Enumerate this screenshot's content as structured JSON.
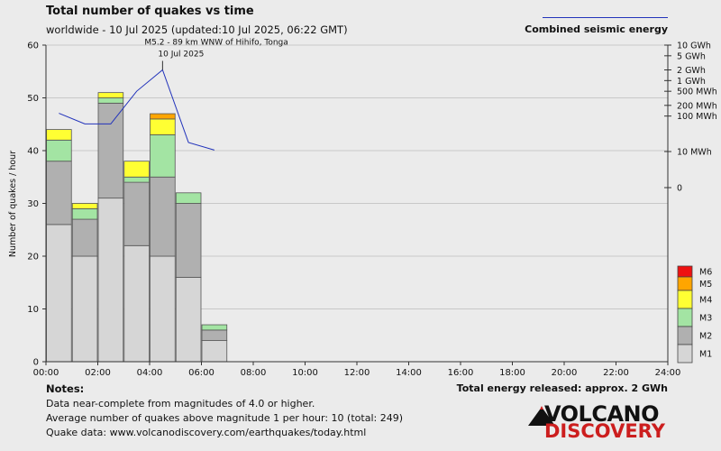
{
  "header": {
    "title": "Total number of quakes vs time",
    "subtitle": "worldwide - 10 Jul 2025 (updated:10 Jul 2025, 06:22 GMT)",
    "energy_legend_label": "Combined seismic energy"
  },
  "footer": {
    "notes_heading": "Notes:",
    "notes": [
      "Data near-complete from magnitudes of 4.0 or higher.",
      "Average number of quakes above magnitude 1 per hour: 10 (total: 249)",
      "Quake data: www.volcanodiscovery.com/earthquakes/today.html"
    ],
    "total_energy": "Total energy released: approx. 2 GWh"
  },
  "logo": {
    "top": "VOLCANO",
    "bottom": "DISCOVERY"
  },
  "colors": {
    "M1": "#d6d6d6",
    "M2": "#b0b0b0",
    "M3": "#a3e4a3",
    "M4": "#ffff33",
    "M5": "#ffa500",
    "M6": "#ee1111",
    "energy_line": "#2233bb",
    "grid": "#c8c8c8",
    "plot_bg": "#ebebeb"
  },
  "chart_data": {
    "type": "bar",
    "stacked": true,
    "ylabel": "Number of quakes / hour",
    "ylim": [
      0,
      60
    ],
    "y_ticks": [
      0,
      10,
      20,
      30,
      40,
      50,
      60
    ],
    "x_tick_labels": [
      "00:00",
      "02:00",
      "04:00",
      "06:00",
      "08:00",
      "10:00",
      "12:00",
      "14:00",
      "16:00",
      "18:00",
      "20:00",
      "22:00",
      "24:00"
    ],
    "hours": [
      0,
      1,
      2,
      3,
      4,
      5,
      6
    ],
    "series": [
      {
        "name": "M1",
        "values": [
          26,
          20,
          31,
          22,
          20,
          16,
          4
        ]
      },
      {
        "name": "M2",
        "values": [
          12,
          7,
          18,
          12,
          15,
          14,
          2
        ]
      },
      {
        "name": "M3",
        "values": [
          4,
          2,
          1,
          1,
          8,
          2,
          1
        ]
      },
      {
        "name": "M4",
        "values": [
          2,
          1,
          1,
          3,
          3,
          0,
          0
        ]
      },
      {
        "name": "M5",
        "values": [
          0,
          0,
          0,
          0,
          1,
          0,
          0
        ]
      },
      {
        "name": "M6",
        "values": [
          0,
          0,
          0,
          0,
          0,
          0,
          0
        ]
      }
    ],
    "energy_axis_labels": [
      "10 GWh",
      "5 GWh",
      "2 GWh",
      "1 GWh",
      "500 MWh",
      "200 MWh",
      "100 MWh",
      "10 MWh",
      "0"
    ],
    "energy_axis_values": [
      10000,
      5000,
      2000,
      1000,
      500,
      200,
      100,
      10,
      0
    ],
    "energy_series": {
      "name": "Combined seismic energy",
      "x": [
        0.5,
        1.5,
        2.5,
        3.5,
        4.5,
        5.5,
        6.5
      ],
      "values_mwh": [
        120,
        60,
        60,
        500,
        2000,
        18,
        11
      ]
    },
    "annotation": {
      "line1": "M5.2 - 89 km WNW of Hihifo, Tonga",
      "line2": "10 Jul 2025",
      "x": 4.5,
      "energy_mwh": 2000
    },
    "grid": true,
    "legend_placement": "bottom-right"
  }
}
